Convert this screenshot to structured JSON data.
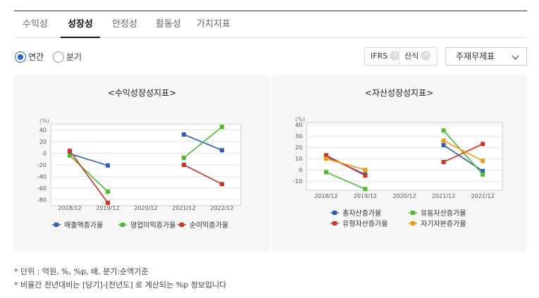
{
  "tabs": [
    {
      "label": "수익성",
      "active": false
    },
    {
      "label": "성장성",
      "active": true
    },
    {
      "label": "안정성",
      "active": false
    },
    {
      "label": "활동성",
      "active": false
    },
    {
      "label": "가치지표",
      "active": false
    }
  ],
  "period": {
    "annual_label": "연간",
    "quarterly_label": "분기",
    "selected": "연간"
  },
  "options": {
    "ifrs_label": "IFRS",
    "formula_label": "산식",
    "help_glyph": "?"
  },
  "select": {
    "value": "주재무제표"
  },
  "notes": [
    "* 단위 : 억원, %, %p, 배, 분기:순액기준",
    "* 비율간 전년대비는 [당기]-[전년도] 로 계산되는 %p 정보입니다"
  ],
  "chart_data": [
    {
      "type": "line",
      "title": "<수익성장성지표>",
      "unit_label": "(%)",
      "categories": [
        "2018/12",
        "2019/12",
        "2020/12",
        "2021/12",
        "2022/12"
      ],
      "ylim": [
        -90,
        50
      ],
      "yticks": [
        40,
        20,
        0,
        -20,
        -40,
        -60,
        -80
      ],
      "grid": true,
      "legend_position": "bottom",
      "series": [
        {
          "name": "매출액증가율",
          "color": "#2a5cb8",
          "values": [
            -1,
            -21,
            null,
            32,
            5
          ]
        },
        {
          "name": "영업이익증가율",
          "color": "#4cbb2e",
          "values": [
            -4,
            -66,
            null,
            -8,
            45
          ]
        },
        {
          "name": "순이익증가율",
          "color": "#cc3322",
          "values": [
            4,
            -85,
            null,
            -20,
            -53
          ]
        }
      ]
    },
    {
      "type": "line",
      "title": "<자산성장성지표>",
      "unit_label": "(%)",
      "categories": [
        "2018/12",
        "2019/12",
        "2020/12",
        "2021/12",
        "2022/12"
      ],
      "ylim": [
        -18,
        42
      ],
      "yticks": [
        40,
        30,
        20,
        10,
        0,
        -10
      ],
      "grid": true,
      "legend_position": "bottom",
      "series": [
        {
          "name": "총자산증가율",
          "color": "#2a5cb8",
          "values": [
            12,
            -4,
            null,
            22,
            -1
          ]
        },
        {
          "name": "유동자산증가율",
          "color": "#4cbb2e",
          "values": [
            -2,
            -17,
            null,
            35,
            -4
          ]
        },
        {
          "name": "유형자산증가율",
          "color": "#cc3322",
          "values": [
            13,
            -5,
            null,
            7,
            23
          ]
        },
        {
          "name": "자기자본증가율",
          "color": "#f39a12",
          "values": [
            10,
            0,
            null,
            26,
            8
          ]
        }
      ]
    }
  ]
}
